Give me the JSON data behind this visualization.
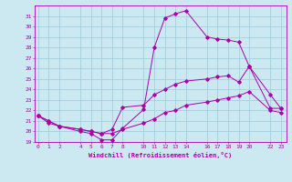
{
  "xlabel": "Windchill (Refroidissement éolien,°C)",
  "ylabel": "",
  "bg_color": "#cce8f0",
  "grid_color": "#99ccdd",
  "line_color": "#aa00aa",
  "x_ticks": [
    0,
    1,
    2,
    4,
    5,
    6,
    7,
    8,
    10,
    11,
    12,
    13,
    14,
    16,
    17,
    18,
    19,
    20,
    22,
    23
  ],
  "ylim": [
    19,
    32
  ],
  "y_ticks": [
    19,
    20,
    21,
    22,
    23,
    24,
    25,
    26,
    27,
    28,
    29,
    30,
    31
  ],
  "xlim": [
    -0.3,
    23.5
  ],
  "series": {
    "line1": {
      "x": [
        0,
        1,
        2,
        4,
        5,
        6,
        7,
        8,
        10,
        11,
        12,
        13,
        14,
        16,
        17,
        18,
        19,
        20,
        22,
        23
      ],
      "y": [
        21.5,
        21.0,
        20.5,
        20.0,
        19.8,
        19.2,
        19.2,
        20.3,
        22.1,
        28.0,
        30.8,
        31.2,
        31.5,
        29.0,
        28.8,
        28.7,
        28.5,
        26.2,
        22.2,
        22.2
      ]
    },
    "line2": {
      "x": [
        0,
        1,
        2,
        4,
        5,
        6,
        7,
        8,
        10,
        11,
        12,
        13,
        14,
        16,
        17,
        18,
        19,
        20,
        22,
        23
      ],
      "y": [
        21.5,
        21.0,
        20.5,
        20.2,
        20.0,
        19.8,
        20.2,
        22.3,
        22.5,
        23.5,
        24.0,
        24.5,
        24.8,
        25.0,
        25.2,
        25.3,
        24.7,
        26.2,
        23.5,
        22.2
      ]
    },
    "line3": {
      "x": [
        0,
        1,
        2,
        4,
        5,
        6,
        7,
        8,
        10,
        11,
        12,
        13,
        14,
        16,
        17,
        18,
        19,
        20,
        22,
        23
      ],
      "y": [
        21.5,
        20.8,
        20.5,
        20.2,
        20.0,
        19.8,
        19.8,
        20.2,
        20.8,
        21.2,
        21.8,
        22.0,
        22.5,
        22.8,
        23.0,
        23.2,
        23.4,
        23.8,
        22.0,
        21.8
      ]
    }
  }
}
